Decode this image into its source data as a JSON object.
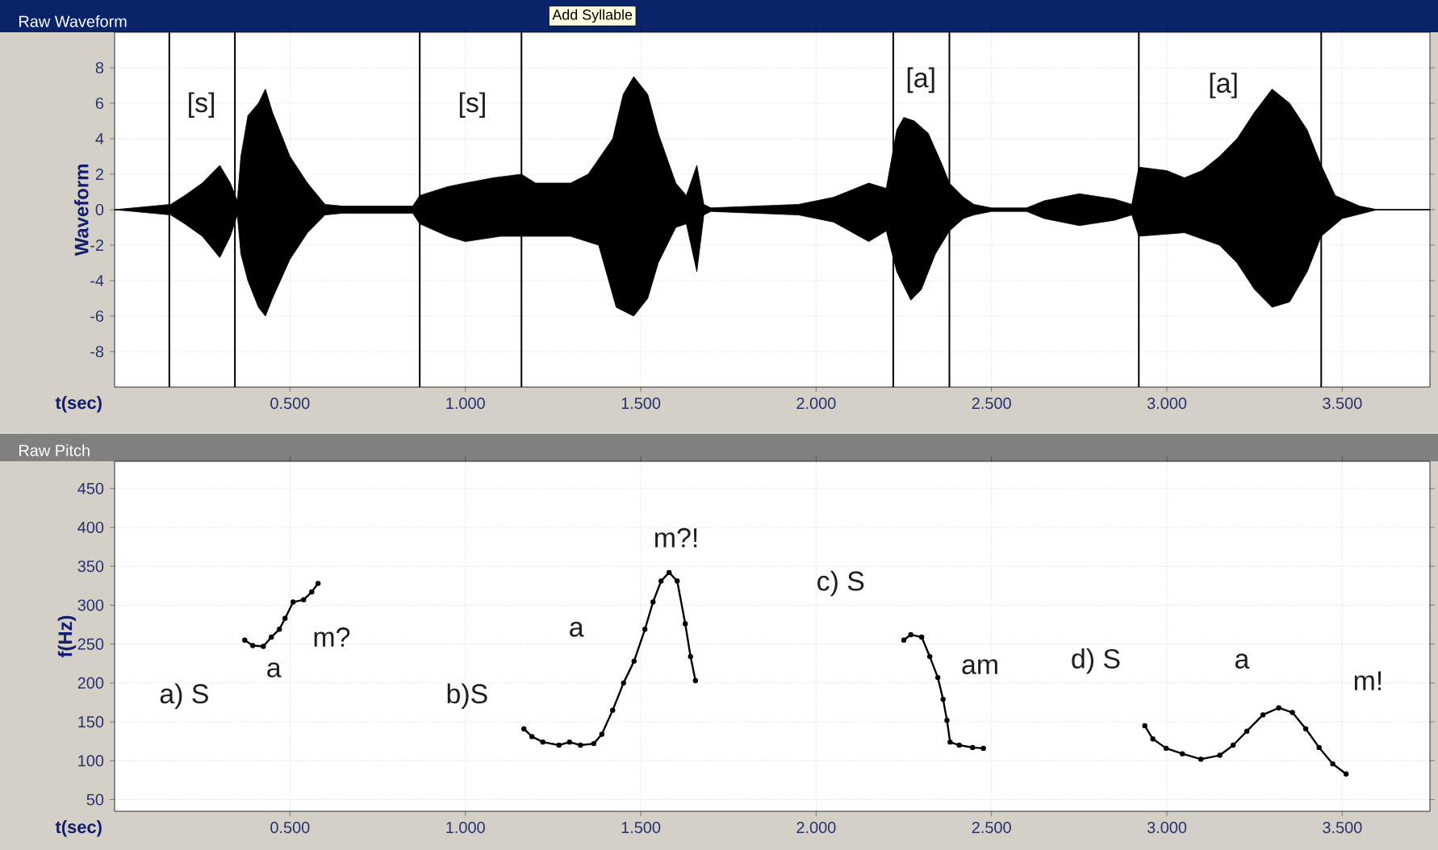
{
  "chart_data": [
    {
      "type": "area",
      "title": "Raw Waveform",
      "xlabel": "t(sec)",
      "ylabel": "Waveform",
      "annotations": [
        "[s]",
        "[s]",
        "[a]",
        "[a]",
        "Add Syllable"
      ],
      "series": [
        {
          "color": "#000000",
          "x": [
            0.0,
            0.16,
            0.2,
            0.25,
            0.3,
            0.33,
            0.35,
            0.36,
            0.38,
            0.41,
            0.43,
            0.45,
            0.5,
            0.55,
            0.6,
            0.65,
            0.75,
            0.85,
            0.87,
            0.95,
            1.0,
            1.08,
            1.16,
            1.2,
            1.3,
            1.35,
            1.42,
            1.45,
            1.48,
            1.52,
            1.55,
            1.6,
            1.63,
            1.66,
            1.68,
            1.7,
            1.95,
            2.05,
            2.15,
            2.2,
            2.23,
            2.25,
            2.28,
            2.32,
            2.36,
            2.38,
            2.42,
            2.45,
            2.5,
            2.6,
            2.65,
            2.75,
            2.85,
            2.9,
            2.92,
            3.0,
            3.05,
            3.1,
            3.15,
            3.2,
            3.25,
            3.3,
            3.35,
            3.4,
            3.44,
            3.48,
            3.55,
            3.6,
            3.75
          ],
          "values": [
            0,
            0.3,
            0.8,
            1.5,
            2.5,
            1.5,
            0.5,
            3,
            5.3,
            6,
            6.8,
            5.5,
            3,
            1.5,
            0.3,
            0.2,
            0.2,
            0.2,
            0.8,
            1.3,
            1.5,
            1.8,
            2.0,
            1.5,
            1.5,
            2,
            4,
            6.5,
            7.5,
            6.5,
            4.3,
            1.5,
            0.8,
            2.5,
            0.3,
            0.1,
            0.3,
            0.7,
            1.5,
            1.2,
            4.5,
            5.2,
            5.0,
            4.3,
            2.5,
            1.5,
            0.7,
            0.3,
            0.1,
            0.1,
            0.5,
            0.9,
            0.6,
            0.3,
            2.4,
            2.2,
            1.8,
            2.2,
            3.0,
            4.0,
            5.5,
            6.8,
            6.0,
            4.5,
            2.5,
            0.8,
            0.2,
            0,
            0
          ]
        },
        {
          "color": "#000000",
          "x": [
            0.0,
            0.16,
            0.2,
            0.25,
            0.3,
            0.33,
            0.35,
            0.36,
            0.38,
            0.41,
            0.43,
            0.45,
            0.5,
            0.55,
            0.6,
            0.65,
            0.75,
            0.85,
            0.87,
            0.95,
            1.0,
            1.1,
            1.16,
            1.3,
            1.38,
            1.43,
            1.48,
            1.52,
            1.55,
            1.6,
            1.63,
            1.66,
            1.68,
            1.7,
            1.95,
            2.05,
            2.15,
            2.2,
            2.23,
            2.27,
            2.3,
            2.34,
            2.38,
            2.42,
            2.45,
            2.5,
            2.6,
            2.65,
            2.75,
            2.85,
            2.9,
            2.92,
            3.05,
            3.15,
            3.2,
            3.25,
            3.3,
            3.35,
            3.4,
            3.44,
            3.5,
            3.6,
            3.75
          ],
          "values": [
            0,
            -0.3,
            -0.8,
            -1.5,
            -2.7,
            -1.5,
            -0.3,
            -2.5,
            -4,
            -5.5,
            -6,
            -5,
            -2.8,
            -1.3,
            -0.3,
            -0.2,
            -0.2,
            -0.2,
            -0.8,
            -1.5,
            -1.8,
            -1.5,
            -1.5,
            -1.5,
            -2,
            -5.5,
            -6,
            -5,
            -3,
            -1,
            -0.8,
            -3.5,
            -0.3,
            -0.1,
            -0.3,
            -0.7,
            -1.8,
            -1.2,
            -3.5,
            -5.1,
            -4.5,
            -2.5,
            -1.2,
            -0.5,
            -0.3,
            -0.1,
            -0.1,
            -0.5,
            -0.9,
            -0.6,
            -0.3,
            -1.5,
            -1.3,
            -2,
            -3,
            -4.5,
            -5.5,
            -5.2,
            -3.5,
            -1.5,
            -0.5,
            0,
            0
          ]
        }
      ],
      "xlim": [
        0,
        3.75
      ],
      "ylim": [
        -10,
        10
      ],
      "xticks": [
        {
          "value": 0.5,
          "label": "0.500"
        },
        {
          "value": 1.0,
          "label": "1.000"
        },
        {
          "value": 1.5,
          "label": "1.500"
        },
        {
          "value": 2.0,
          "label": "2.000"
        },
        {
          "value": 2.5,
          "label": "2.500"
        },
        {
          "value": 3.0,
          "label": "3.000"
        },
        {
          "value": 3.5,
          "label": "3.500"
        }
      ],
      "yticks": [
        -8,
        -6,
        -4,
        -2,
        0,
        2,
        4,
        6,
        8
      ],
      "grid": true,
      "ref_lines": [
        {
          "axis": "x",
          "value": 0.156,
          "color": "#000000"
        },
        {
          "axis": "x",
          "value": 0.343,
          "color": "#000000"
        },
        {
          "axis": "x",
          "value": 0.87,
          "color": "#000000"
        },
        {
          "axis": "x",
          "value": 1.16,
          "color": "#000000"
        },
        {
          "axis": "x",
          "value": 2.22,
          "color": "#000000"
        },
        {
          "axis": "x",
          "value": 2.38,
          "color": "#000000"
        },
        {
          "axis": "x",
          "value": 2.92,
          "color": "#000000"
        },
        {
          "axis": "x",
          "value": 3.44,
          "color": "#000000"
        }
      ]
    },
    {
      "type": "line",
      "title": "Raw Pitch",
      "xlabel": "t(sec)",
      "ylabel": "f(Hz)",
      "marker": "circle",
      "annotations": [
        "a) S",
        "a",
        "m?",
        "b)S",
        "a",
        "m?!",
        "c) S",
        "am",
        "d) S",
        "a",
        "m!"
      ],
      "series": [
        {
          "color": "#000000",
          "x": [
            0.371,
            0.394,
            0.424,
            0.447,
            0.47,
            0.486,
            0.509,
            0.539,
            0.562,
            0.58
          ],
          "values": [
            255,
            248,
            247,
            259,
            269,
            283,
            304,
            307,
            317,
            328
          ]
        },
        {
          "color": "#000000",
          "x": [
            1.167,
            1.19,
            1.221,
            1.267,
            1.297,
            1.328,
            1.366,
            1.389,
            1.42,
            1.451,
            1.481,
            1.512,
            1.535,
            1.558,
            1.581,
            1.604,
            1.627,
            1.642,
            1.656
          ],
          "values": [
            141,
            131,
            124,
            120,
            124,
            120,
            122,
            134,
            165,
            200,
            228,
            269,
            304,
            331,
            342,
            331,
            276,
            234,
            203
          ]
        },
        {
          "color": "#000000",
          "x": [
            2.25,
            2.27,
            2.301,
            2.324,
            2.347,
            2.362,
            2.373,
            2.382,
            2.408,
            2.446,
            2.477
          ],
          "values": [
            255,
            262,
            259,
            234,
            207,
            179,
            152,
            124,
            120,
            117,
            116
          ]
        },
        {
          "color": "#000000",
          "x": [
            2.937,
            2.96,
            2.998,
            3.044,
            3.097,
            3.151,
            3.189,
            3.228,
            3.274,
            3.319,
            3.358,
            3.396,
            3.434,
            3.473,
            3.511
          ],
          "values": [
            145,
            128,
            116,
            109,
            102,
            107,
            120,
            138,
            159,
            168,
            162,
            141,
            117,
            96,
            83
          ]
        }
      ],
      "xlim": [
        0,
        3.75
      ],
      "ylim": [
        35,
        485
      ],
      "xticks": [
        {
          "value": 0.5,
          "label": "0.500"
        },
        {
          "value": 1.0,
          "label": "1.000"
        },
        {
          "value": 1.5,
          "label": "1.500"
        },
        {
          "value": 2.0,
          "label": "2.000"
        },
        {
          "value": 2.5,
          "label": "2.500"
        },
        {
          "value": 3.0,
          "label": "3.000"
        },
        {
          "value": 3.5,
          "label": "3.500"
        }
      ],
      "yticks": [
        50,
        100,
        150,
        200,
        250,
        300,
        350,
        400,
        450
      ],
      "grid": true
    }
  ]
}
